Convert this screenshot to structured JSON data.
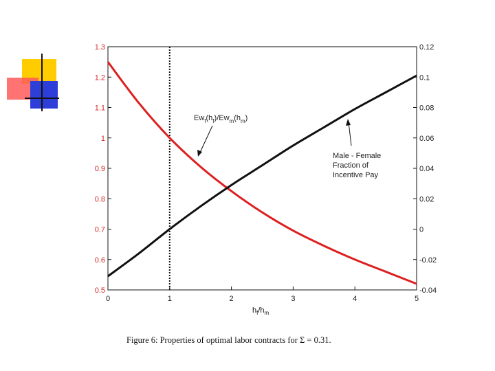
{
  "slide": {
    "caption": "Figure 6:  Properties of optimal labor contracts for Σ = 0.31."
  },
  "chart_data": {
    "type": "line",
    "xlabel": "h_f/h_m",
    "xlim": [
      0,
      5
    ],
    "xticks": [
      "0",
      "1",
      "2",
      "3",
      "4",
      "5"
    ],
    "ylim_left": [
      0.5,
      1.3
    ],
    "yticks_left": [
      "0.5",
      "0.6",
      "0.7",
      "0.8",
      "0.9",
      "1",
      "1.1",
      "1.2",
      "1.3"
    ],
    "ylim_right": [
      -0.04,
      0.12
    ],
    "yticks_right": [
      "-0.04",
      "-0.02",
      "0",
      "0.02",
      "0.04",
      "0.06",
      "0.08",
      "0.1",
      "0.12"
    ],
    "vline_x": 1,
    "grid": false,
    "colors": {
      "red_series": "#dd1f1f",
      "black_series": "#111111",
      "left_ticks": "#d42a2a"
    },
    "series": [
      {
        "axis": "left",
        "color": "#dd1f1f",
        "x": [
          0,
          0.5,
          1,
          1.5,
          2,
          2.5,
          3,
          3.5,
          4,
          4.5,
          5
        ],
        "y": [
          1.25,
          1.115,
          1.0,
          0.905,
          0.825,
          0.755,
          0.695,
          0.645,
          0.6,
          0.56,
          0.52
        ]
      },
      {
        "axis": "right",
        "color": "#111111",
        "x": [
          0,
          0.5,
          1,
          1.5,
          2,
          2.5,
          3,
          3.5,
          4,
          4.5,
          5
        ],
        "y": [
          -0.031,
          -0.016,
          0.0,
          0.015,
          0.029,
          0.042,
          0.055,
          0.067,
          0.079,
          0.09,
          0.101
        ]
      }
    ],
    "annotations": [
      {
        "id": "ratio",
        "base": "Ew",
        "sub1": "f",
        "mid1": "(h",
        "sub2": "f",
        "mid2": ")/Ew",
        "sub3": "m",
        "mid3": "(h",
        "sub4": "m",
        "end": ")"
      },
      {
        "id": "diff",
        "lines": [
          "Male - Female",
          "Fraction of",
          "Incentive Pay"
        ]
      }
    ],
    "xlabel_parts": {
      "base": "h",
      "sub1": "f",
      "slash": "/h",
      "sub2": "m"
    }
  }
}
